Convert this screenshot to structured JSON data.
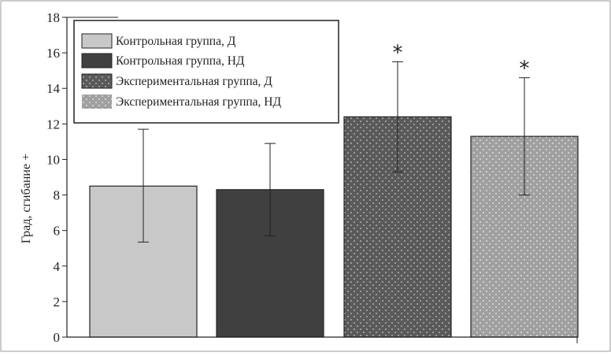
{
  "chart_data": {
    "type": "bar",
    "ylabel": "Град, сгибание +",
    "xlabel": "",
    "title": "",
    "ylim": [
      0,
      18
    ],
    "yticks": [
      "0",
      "2",
      "4",
      "6",
      "8",
      "10",
      "12",
      "14",
      "16",
      "18"
    ],
    "grid": false,
    "legend_position": "top-left",
    "series": [
      {
        "name": "Контрольная группа, Д",
        "value": 8.5,
        "error_low": 5.35,
        "error_high": 11.7,
        "fill": "#c8c8c8",
        "pattern": "solid",
        "significant": false
      },
      {
        "name": "Контрольная группа, НД",
        "value": 8.3,
        "error_low": 5.7,
        "error_high": 10.9,
        "fill": "#404040",
        "pattern": "solid",
        "significant": false
      },
      {
        "name": "Экспериментальная группа, Д",
        "value": 12.4,
        "error_low": 9.3,
        "error_high": 15.5,
        "fill": "#5a5a5a",
        "pattern": "dots-light",
        "significant": true
      },
      {
        "name": "Экспериментальная группа, НД",
        "value": 11.3,
        "error_low": 8.0,
        "error_high": 14.6,
        "fill": "#a0a0a0",
        "pattern": "dots-dark",
        "significant": true
      }
    ],
    "significance_marker": "*"
  }
}
